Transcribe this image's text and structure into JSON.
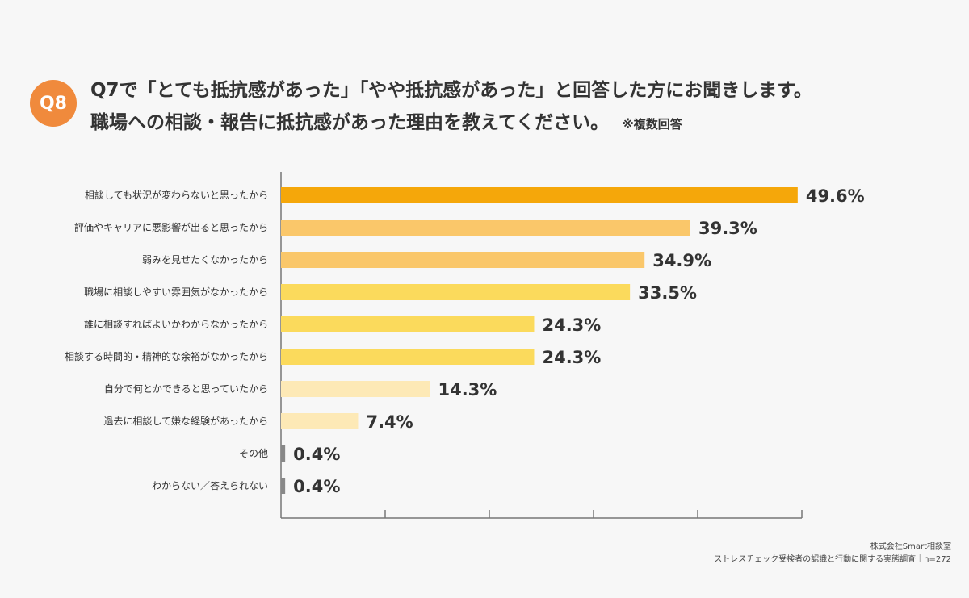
{
  "badge": "Q8",
  "title": {
    "line1": "Q7で「とても抵抗感があった」「やや抵抗感があった」と回答した方にお聞きします。",
    "line2": "職場への相談・報告に抵抗感があった理由を教えてください。",
    "note": "※複数回答"
  },
  "footer": {
    "company": "株式会社Smart相談室",
    "source": "ストレスチェック受検者の認識と行動に関する実態調査｜n=272"
  },
  "chart_data": {
    "type": "bar",
    "orientation": "horizontal",
    "categories": [
      "相談しても状況が変わらないと思ったから",
      "評価やキャリアに悪影響が出ると思ったから",
      "弱みを見せたくなかったから",
      "職場に相談しやすい雰囲気がなかったから",
      "誰に相談すればよいかわからなかったから",
      "相談する時間的・精神的な余裕がなかったから",
      "自分で何とかできると思っていたから",
      "過去に相談して嫌な経験があったから",
      "その他",
      "わからない／答えられない"
    ],
    "values": [
      49.6,
      39.3,
      34.9,
      33.5,
      24.3,
      24.3,
      14.3,
      7.4,
      0.4,
      0.4
    ],
    "value_labels": [
      "49.6%",
      "39.3%",
      "34.9%",
      "33.5%",
      "24.3%",
      "24.3%",
      "14.3%",
      "7.4%",
      "0.4%",
      "0.4%"
    ],
    "colors": [
      "#f5a70a",
      "#fac76a",
      "#fac76a",
      "#fbda5c",
      "#fbda5c",
      "#fbda5c",
      "#fde9b6",
      "#fde9b6",
      "#888888",
      "#888888"
    ],
    "xlim": [
      0,
      50
    ],
    "ticks": [
      0,
      10,
      20,
      30,
      40,
      50
    ],
    "grid": false,
    "legend": "none"
  }
}
